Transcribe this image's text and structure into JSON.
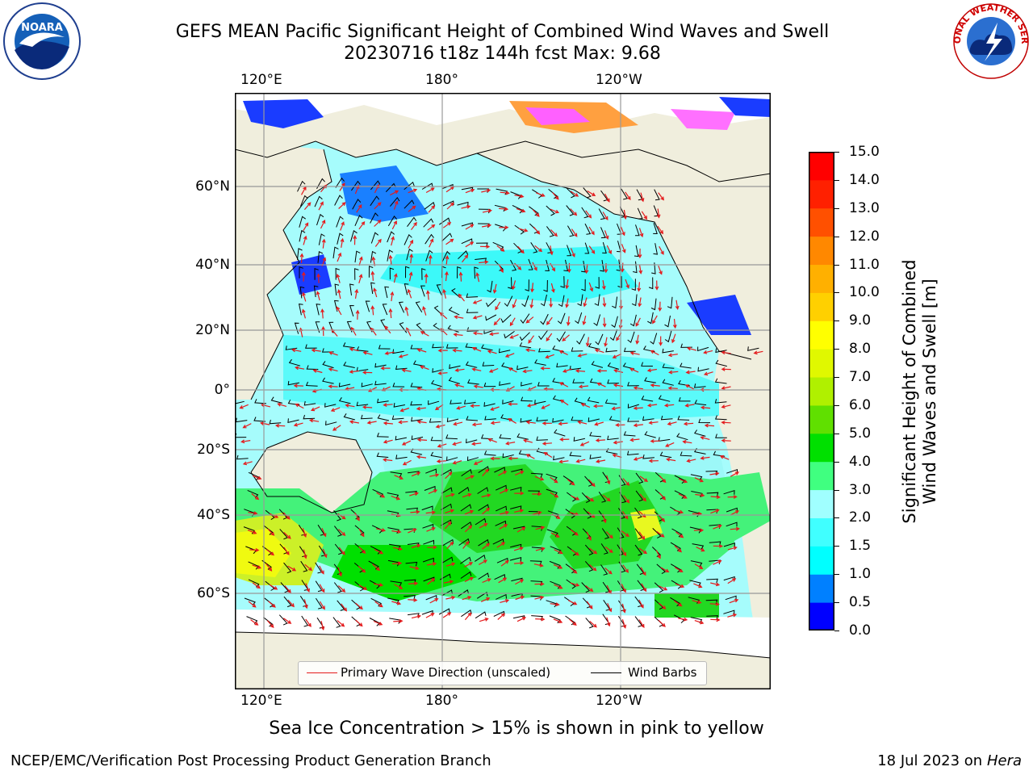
{
  "header": {
    "title_line1": "GEFS MEAN Pacific Significant Height of Combined Wind Waves and Swell",
    "title_line2": "20230716 t18z 144h fcst   Max: 9.68"
  },
  "logos": {
    "noaa": {
      "text": "NOARA",
      "icon": "noaa-logo"
    },
    "nws": {
      "text": "NATIONAL WEATHER SERVICE",
      "icon": "nws-logo"
    }
  },
  "map": {
    "longitude_labels_top": [
      "120°E",
      "180°",
      "120°W"
    ],
    "longitude_labels_bottom": [
      "120°E",
      "180°",
      "120°W"
    ],
    "latitude_labels": [
      "60°N",
      "40°N",
      "20°N",
      "0°",
      "20°S",
      "40°S",
      "60°S"
    ]
  },
  "legend": {
    "primary_wave": "Primary Wave Direction (unscaled)",
    "wind_barbs": "Wind Barbs",
    "primary_wave_color": "#e41a1c",
    "wind_barbs_color": "#000000"
  },
  "colorbar": {
    "title_line1": "Significant Height of Combined",
    "title_line2": "Wind Waves and Swell [m]",
    "ticks": [
      "15.0",
      "14.0",
      "13.0",
      "12.0",
      "11.0",
      "10.0",
      "9.0",
      "8.0",
      "7.0",
      "6.0",
      "5.0",
      "4.0",
      "3.0",
      "2.0",
      "1.5",
      "1.0",
      "0.5",
      "0.0"
    ],
    "colors_bottom_to_top": [
      "#0000ff",
      "#0080ff",
      "#00ffff",
      "#40ffff",
      "#a0ffff",
      "#40ff80",
      "#00e000",
      "#60e000",
      "#b0f000",
      "#e0f800",
      "#ffff00",
      "#ffd000",
      "#ffb000",
      "#ff8800",
      "#ff5000",
      "#ff2000",
      "#ff0000"
    ]
  },
  "notes": {
    "sea_ice": "Sea Ice Concentration > 15% is shown in pink to yellow"
  },
  "footer": {
    "left": "NCEP/EMC/Verification Post Processing Product Generation Branch",
    "right_prefix": "18 Jul 2023 on ",
    "right_machine": "Hera"
  }
}
